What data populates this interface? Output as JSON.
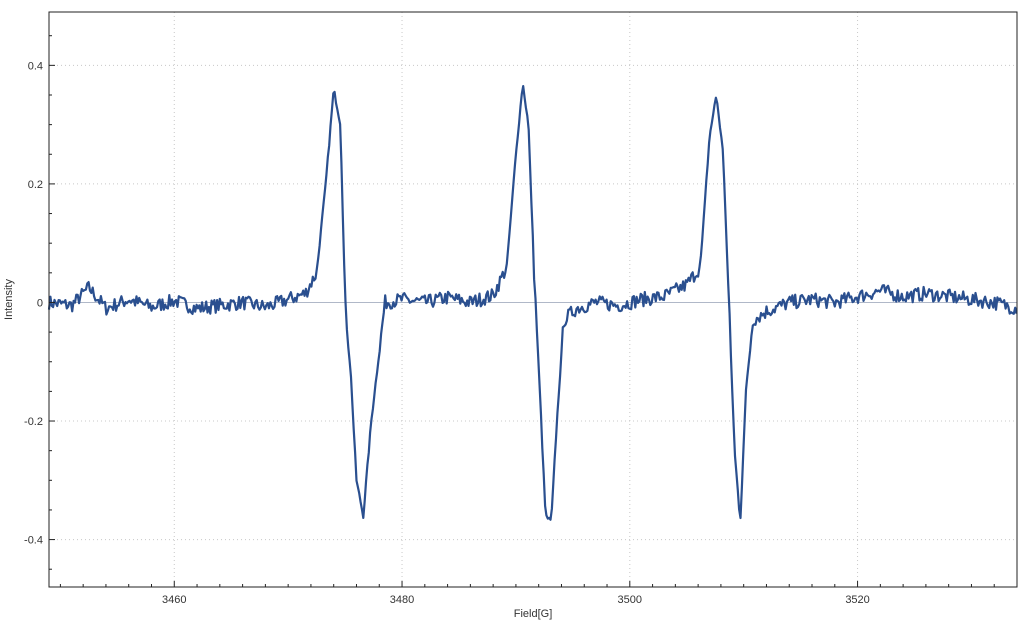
{
  "chart_data": {
    "type": "line",
    "title": "",
    "xlabel": "Field[G]",
    "ylabel": "Intensity",
    "xlim": [
      3449,
      3534
    ],
    "ylim": [
      -0.48,
      0.49
    ],
    "grid": true,
    "x_major_ticks": [
      3460,
      3480,
      3500,
      3520
    ],
    "y_major_ticks": [
      -0.4,
      -0.2,
      0,
      0.2,
      0.4
    ],
    "x_tick_labels": [
      "3460",
      "3480",
      "3500",
      "3520"
    ],
    "y_tick_labels": [
      "-0.4",
      "-0.2",
      "0",
      "0.2",
      "0.4"
    ],
    "baseline": 0,
    "line_color": "#2a4f8f",
    "grid_color": "#c8c8c8",
    "series": [
      {
        "x": [
          3449,
          3451,
          3452.5,
          3454,
          3456,
          3458,
          3460,
          3462,
          3464,
          3466,
          3468,
          3470,
          3471.5,
          3472.5,
          3473.3,
          3474.0,
          3474.6,
          3475.0,
          3475.5,
          3476.0,
          3476.6,
          3477.3,
          3478.5,
          3480,
          3482,
          3484,
          3486,
          3488,
          3489.2,
          3490.0,
          3490.6,
          3491.1,
          3491.6,
          3492.1,
          3492.6,
          3493.1,
          3493.6,
          3494.2,
          3495.3,
          3497,
          3499,
          3501,
          3503,
          3505,
          3506.2,
          3507.0,
          3507.6,
          3508.2,
          3508.7,
          3509.2,
          3509.7,
          3510.2,
          3510.8,
          3512,
          3514,
          3516,
          3518,
          3520,
          3522,
          3524,
          3526,
          3528,
          3530,
          3532,
          3534
        ],
        "y": [
          0.0,
          -0.005,
          0.025,
          -0.01,
          0.005,
          -0.008,
          0.003,
          -0.01,
          -0.005,
          0.0,
          -0.008,
          0.005,
          0.015,
          0.05,
          0.2,
          0.36,
          0.3,
          0.0,
          -0.12,
          -0.3,
          -0.36,
          -0.2,
          0.0,
          0.005,
          0.0,
          0.008,
          0.0,
          0.012,
          0.06,
          0.25,
          0.37,
          0.3,
          0.05,
          -0.15,
          -0.36,
          -0.37,
          -0.2,
          -0.03,
          -0.01,
          0.0,
          -0.005,
          0.005,
          0.01,
          0.03,
          0.06,
          0.28,
          0.35,
          0.25,
          0.0,
          -0.25,
          -0.37,
          -0.15,
          -0.03,
          -0.015,
          0.0,
          0.005,
          0.0,
          0.01,
          0.02,
          0.01,
          0.015,
          0.01,
          0.005,
          0.0,
          -0.01
        ]
      }
    ]
  }
}
